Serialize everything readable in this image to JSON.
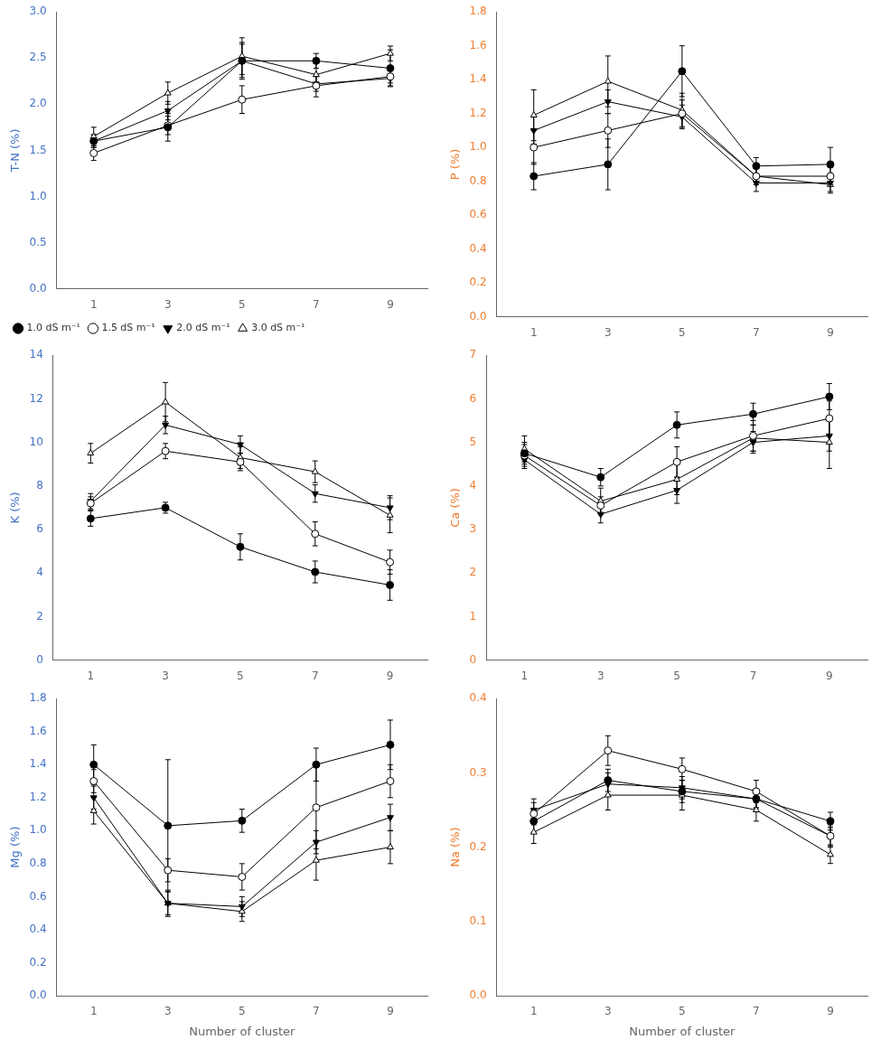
{
  "chart_data": [
    {
      "type": "line",
      "ylabel": "T-N (%)",
      "color": "#4472C4",
      "grid": false,
      "legend": "lower left",
      "x": [
        1,
        3,
        5,
        7,
        9
      ],
      "xlim": [
        0,
        10
      ],
      "xticks": [
        1,
        3,
        5,
        7,
        9
      ],
      "ylim": [
        0,
        3
      ],
      "yticks": [
        {
          "value": 0,
          "label": "0.0"
        },
        0.5,
        {
          "value": 1,
          "label": "1.0"
        },
        1.5,
        {
          "value": 2,
          "label": "2.0"
        },
        2.5,
        {
          "value": 3,
          "label": "3.0"
        }
      ],
      "series": [
        {
          "name": "1.0 dS m⁻¹",
          "color": "black",
          "marker": "circle",
          "values": [
            1.6,
            1.75,
            2.47,
            2.47,
            2.39
          ],
          "yerr": [
            0.07,
            0.15,
            0.2,
            0.08,
            0.2
          ]
        },
        {
          "name": "1.5 dS m⁻¹",
          "color": "black",
          "marker": "circle-open",
          "values": [
            1.47,
            1.77,
            2.05,
            2.2,
            2.3
          ],
          "yerr": [
            0.08,
            0.1,
            0.15,
            0.12,
            0.1
          ]
        },
        {
          "name": "2.0 dS m⁻¹",
          "color": "black",
          "marker": "triangle-down",
          "values": [
            1.6,
            1.93,
            2.47,
            2.22,
            2.28
          ],
          "yerr": [
            0.07,
            0.1,
            0.18,
            0.08,
            0.05
          ]
        },
        {
          "name": "3.0 dS m⁻¹",
          "color": "black",
          "marker": "triangle-up-open",
          "values": [
            1.65,
            2.12,
            2.52,
            2.32,
            2.55
          ],
          "yerr": [
            0.1,
            0.12,
            0.2,
            0.12,
            0.08
          ]
        }
      ]
    },
    {
      "type": "line",
      "ylabel": "P (%)",
      "color": "#ED7D31",
      "grid": false,
      "x": [
        1,
        3,
        5,
        7,
        9
      ],
      "xlim": [
        0,
        10
      ],
      "xticks": [
        1,
        3,
        5,
        7,
        9
      ],
      "ylim": [
        0,
        1.8
      ],
      "yticks": [
        {
          "value": 0,
          "label": "0.0"
        },
        0.2,
        0.4,
        0.6,
        0.8,
        {
          "value": 1,
          "label": "1.0"
        },
        1.2,
        1.4,
        1.6,
        1.8
      ],
      "series": [
        {
          "name": "1.0 dS m⁻¹",
          "color": "black",
          "marker": "circle",
          "values": [
            0.83,
            0.9,
            1.45,
            0.89,
            0.9
          ],
          "yerr": [
            0.08,
            0.15,
            0.15,
            0.05,
            0.1
          ]
        },
        {
          "name": "1.5 dS m⁻¹",
          "color": "black",
          "marker": "circle-open",
          "values": [
            1.0,
            1.1,
            1.2,
            0.83,
            0.83
          ],
          "yerr": [
            0.1,
            0.1,
            0.08,
            0.05,
            0.05
          ]
        },
        {
          "name": "2.0 dS m⁻¹",
          "color": "black",
          "marker": "triangle-down",
          "values": [
            1.1,
            1.27,
            1.18,
            0.79,
            0.79
          ],
          "yerr": [
            0.08,
            0.07,
            0.07,
            0.05,
            0.05
          ]
        },
        {
          "name": "3.0 dS m⁻¹",
          "color": "black",
          "marker": "triangle-up-open",
          "values": [
            1.19,
            1.39,
            1.22,
            0.83,
            0.78
          ],
          "yerr": [
            0.15,
            0.15,
            0.1,
            0.05,
            0.05
          ]
        }
      ]
    },
    {
      "type": "line",
      "ylabel": "K (%)",
      "color": "#4472C4",
      "grid": false,
      "x": [
        1,
        3,
        5,
        7,
        9
      ],
      "xlim": [
        0,
        10
      ],
      "xticks": [
        1,
        3,
        5,
        7,
        9
      ],
      "ylim": [
        0,
        14
      ],
      "yticks": [
        0,
        2,
        4,
        6,
        8,
        10,
        12,
        14
      ],
      "series": [
        {
          "name": "1.0 dS m⁻¹",
          "color": "black",
          "marker": "circle",
          "values": [
            6.5,
            7.0,
            5.2,
            4.05,
            3.45
          ],
          "yerr": [
            0.35,
            0.25,
            0.6,
            0.5,
            0.7
          ]
        },
        {
          "name": "1.5 dS m⁻¹",
          "color": "black",
          "marker": "circle-open",
          "values": [
            7.2,
            9.6,
            9.1,
            5.8,
            4.5
          ],
          "yerr": [
            0.3,
            0.35,
            0.4,
            0.55,
            0.55
          ]
        },
        {
          "name": "2.0 dS m⁻¹",
          "color": "black",
          "marker": "triangle-down",
          "values": [
            7.3,
            10.8,
            9.9,
            7.65,
            7.0
          ],
          "yerr": [
            0.35,
            0.4,
            0.4,
            0.4,
            0.55
          ]
        },
        {
          "name": "3.0 dS m⁻¹",
          "color": "black",
          "marker": "triangle-up-open",
          "values": [
            9.5,
            11.85,
            9.3,
            8.65,
            6.65
          ],
          "yerr": [
            0.45,
            0.9,
            0.5,
            0.5,
            0.8
          ]
        }
      ]
    },
    {
      "type": "line",
      "ylabel": "Ca (%)",
      "color": "#ED7D31",
      "grid": false,
      "x": [
        1,
        3,
        5,
        7,
        9
      ],
      "xlim": [
        0,
        10
      ],
      "xticks": [
        1,
        3,
        5,
        7,
        9
      ],
      "ylim": [
        0,
        7
      ],
      "yticks": [
        0,
        1,
        2,
        3,
        4,
        5,
        6,
        7
      ],
      "series": [
        {
          "name": "1.0 dS m⁻¹",
          "color": "black",
          "marker": "circle",
          "values": [
            4.75,
            4.2,
            5.4,
            5.65,
            6.05
          ],
          "yerr": [
            0.25,
            0.2,
            0.3,
            0.25,
            0.3
          ]
        },
        {
          "name": "1.5 dS m⁻¹",
          "color": "black",
          "marker": "circle-open",
          "values": [
            4.7,
            3.55,
            4.55,
            5.15,
            5.55
          ],
          "yerr": [
            0.25,
            0.2,
            0.35,
            0.35,
            0.4
          ]
        },
        {
          "name": "2.0 dS m⁻¹",
          "color": "black",
          "marker": "triangle-down",
          "values": [
            4.6,
            3.35,
            3.9,
            5.0,
            5.15
          ],
          "yerr": [
            0.2,
            0.2,
            0.3,
            0.25,
            0.35
          ]
        },
        {
          "name": "3.0 dS m⁻¹",
          "color": "black",
          "marker": "triangle-up-open",
          "values": [
            4.85,
            3.65,
            4.15,
            5.1,
            5.0
          ],
          "yerr": [
            0.3,
            0.3,
            0.35,
            0.3,
            0.6
          ]
        }
      ]
    },
    {
      "type": "line",
      "ylabel": "Mg (%)",
      "xlabel": "Number of cluster",
      "color": "#4472C4",
      "grid": false,
      "x": [
        1,
        3,
        5,
        7,
        9
      ],
      "xlim": [
        0,
        10
      ],
      "xticks": [
        1,
        3,
        5,
        7,
        9
      ],
      "ylim": [
        0,
        1.8
      ],
      "yticks": [
        {
          "value": 0,
          "label": "0.0"
        },
        0.2,
        0.4,
        0.6,
        0.8,
        {
          "value": 1,
          "label": "1.0"
        },
        1.2,
        1.4,
        1.6,
        1.8
      ],
      "series": [
        {
          "name": "1.0 dS m⁻¹",
          "color": "black",
          "marker": "circle",
          "values": [
            1.4,
            1.03,
            1.06,
            1.4,
            1.52
          ],
          "yerr": [
            0.12,
            0.4,
            0.07,
            0.1,
            0.15
          ]
        },
        {
          "name": "1.5 dS m⁻¹",
          "color": "black",
          "marker": "circle-open",
          "values": [
            1.3,
            0.76,
            0.72,
            1.14,
            1.3
          ],
          "yerr": [
            0.07,
            0.07,
            0.08,
            0.25,
            0.1
          ]
        },
        {
          "name": "2.0 dS m⁻¹",
          "color": "black",
          "marker": "triangle-down",
          "values": [
            1.2,
            0.56,
            0.54,
            0.93,
            1.08
          ],
          "yerr": [
            0.07,
            0.07,
            0.06,
            0.07,
            0.08
          ]
        },
        {
          "name": "3.0 dS m⁻¹",
          "color": "black",
          "marker": "triangle-up-open",
          "values": [
            1.12,
            0.56,
            0.51,
            0.82,
            0.9
          ],
          "yerr": [
            0.08,
            0.08,
            0.06,
            0.12,
            0.1
          ]
        }
      ]
    },
    {
      "type": "line",
      "ylabel": "Na (%)",
      "xlabel": "Number of cluster",
      "color": "#ED7D31",
      "grid": false,
      "x": [
        1,
        3,
        5,
        7,
        9
      ],
      "xlim": [
        0,
        10
      ],
      "xticks": [
        1,
        3,
        5,
        7,
        9
      ],
      "ylim": [
        0,
        0.4
      ],
      "yticks": [
        {
          "value": 0,
          "label": "0.0"
        },
        0.1,
        0.2,
        0.3,
        0.4
      ],
      "series": [
        {
          "name": "1.0 dS m⁻¹",
          "color": "black",
          "marker": "circle",
          "values": [
            0.235,
            0.29,
            0.275,
            0.265,
            0.235
          ],
          "yerr": [
            0.015,
            0.015,
            0.015,
            0.012,
            0.012
          ]
        },
        {
          "name": "1.5 dS m⁻¹",
          "color": "black",
          "marker": "circle-open",
          "values": [
            0.245,
            0.33,
            0.305,
            0.275,
            0.215
          ],
          "yerr": [
            0.015,
            0.02,
            0.015,
            0.015,
            0.015
          ]
        },
        {
          "name": "2.0 dS m⁻¹",
          "color": "black",
          "marker": "triangle-down",
          "values": [
            0.25,
            0.285,
            0.28,
            0.265,
            0.215
          ],
          "yerr": [
            0.015,
            0.015,
            0.015,
            0.012,
            0.012
          ]
        },
        {
          "name": "3.0 dS m⁻¹",
          "color": "black",
          "marker": "triangle-up-open",
          "values": [
            0.22,
            0.27,
            0.27,
            0.25,
            0.19
          ],
          "yerr": [
            0.015,
            0.02,
            0.02,
            0.015,
            0.012
          ]
        }
      ]
    }
  ]
}
